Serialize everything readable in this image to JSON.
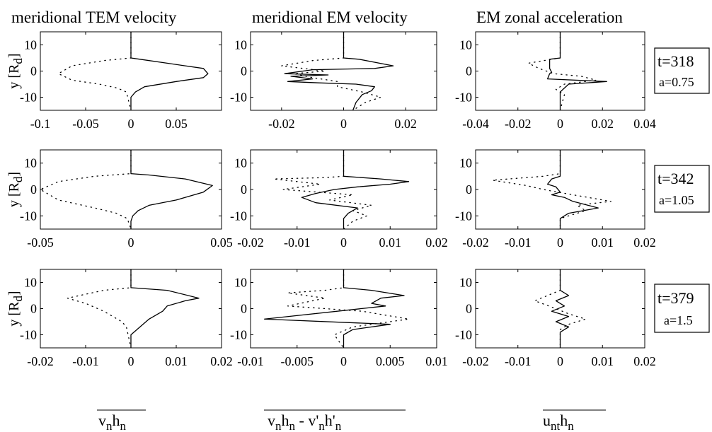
{
  "column_titles": [
    "meridional TEM velocity",
    "meridional EM velocity",
    "EM zonal acceleration"
  ],
  "ylabel": {
    "main": "y [R",
    "sub": "d",
    "close": "]"
  },
  "bottom_labels": [
    {
      "name": "vh-label",
      "text": "v",
      "subs": [
        "n"
      ],
      "mid": "h",
      "subs2": [
        "n"
      ]
    },
    {
      "name": "flux-label"
    },
    {
      "name": "uh-label"
    }
  ],
  "bottom_texts": {
    "l0": {
      "t1": "v",
      "s1": "n",
      "t2": "h",
      "s2": "n"
    },
    "l1": {
      "t1": "v",
      "s1": "n",
      "t2": "h",
      "s2": "n",
      "t3": " - v'",
      "s3": "n",
      "t4": "h'",
      "s4": "n"
    },
    "l2": {
      "t1": "u",
      "s1": "nt",
      "t2": "h",
      "s2": "n"
    }
  },
  "row_boxes": [
    {
      "t": "t=318",
      "a": "a=0.75"
    },
    {
      "t": "t=342",
      "a": "a=1.05"
    },
    {
      "t": "t=379",
      "a": "a=1.5"
    }
  ],
  "chart_data": [
    {
      "type": "line",
      "row": 0,
      "col": 0,
      "xlim": [
        -0.1,
        0.1
      ],
      "ylim": [
        -15,
        15
      ],
      "xticks": [
        "-0.1",
        "-0.05",
        "0",
        "0.05"
      ],
      "xtick_values": [
        -0.1,
        -0.05,
        0,
        0.05
      ],
      "yticks": [
        "10",
        "0",
        "-10"
      ],
      "ytick_values": [
        10,
        0,
        -10
      ],
      "series": [
        {
          "style": "solid",
          "x": [
            0,
            0,
            0.01,
            0.04,
            0.08,
            0.085,
            0.08,
            0.05,
            0.015,
            0.005,
            0,
            0
          ],
          "y": [
            15,
            5,
            4.5,
            3,
            1,
            -1,
            -2.5,
            -4,
            -6,
            -8,
            -10,
            -15
          ]
        },
        {
          "style": "dotted",
          "x": [
            0,
            0,
            -0.03,
            -0.065,
            -0.08,
            -0.065,
            -0.035,
            -0.015,
            -0.005,
            0
          ],
          "y": [
            15,
            5,
            4,
            2,
            -1,
            -3.5,
            -5,
            -6.5,
            -8,
            -15
          ]
        }
      ]
    },
    {
      "type": "line",
      "row": 0,
      "col": 1,
      "xlim": [
        -0.03,
        0.03
      ],
      "ylim": [
        -15,
        15
      ],
      "xticks": [
        "-0.02",
        "0",
        "0.02"
      ],
      "xtick_values": [
        -0.02,
        0,
        0.02
      ],
      "yticks": [
        "10",
        "0",
        "-10"
      ],
      "ytick_values": [
        10,
        0,
        -10
      ],
      "series": [
        {
          "style": "solid",
          "x": [
            0,
            0,
            0.005,
            0.016,
            0.01,
            -0.01,
            -0.019,
            -0.005,
            -0.017,
            -0.01,
            -0.018,
            -0.008,
            0.004,
            0.01,
            0.009,
            0.006,
            0.004,
            0.003
          ],
          "y": [
            15,
            5,
            4.5,
            2,
            1,
            0.5,
            -1,
            -1.5,
            -2,
            -3,
            -4,
            -4.5,
            -5,
            -6,
            -7.5,
            -9,
            -12,
            -15
          ]
        },
        {
          "style": "dotted",
          "x": [
            0,
            0,
            -0.01,
            -0.02,
            -0.013,
            -0.006,
            -0.016,
            -0.01,
            -0.002,
            -0.002,
            0.006,
            0.012,
            0.007,
            0.003
          ],
          "y": [
            15,
            5,
            4,
            2,
            1,
            0,
            -1,
            -2.5,
            -4,
            -6,
            -8,
            -10,
            -12,
            -15
          ]
        }
      ]
    },
    {
      "type": "line",
      "row": 0,
      "col": 2,
      "xlim": [
        -0.04,
        0.04
      ],
      "ylim": [
        -15,
        15
      ],
      "xticks": [
        "-0.04",
        "-0.02",
        "0",
        "0.02",
        "0.04"
      ],
      "xtick_values": [
        -0.04,
        -0.02,
        0,
        0.02,
        0.04
      ],
      "yticks": [
        "10",
        "0",
        "-10"
      ],
      "ytick_values": [
        10,
        0,
        -10
      ],
      "series": [
        {
          "style": "solid",
          "x": [
            0,
            0,
            -0.005,
            -0.005,
            -0.004,
            -0.005,
            -0.006,
            0.022,
            0.004,
            0.002,
            0,
            0
          ],
          "y": [
            15,
            5,
            4.5,
            1,
            -0.5,
            -1,
            -3,
            -4,
            -5,
            -6.5,
            -8,
            -15
          ]
        },
        {
          "style": "dotted",
          "x": [
            0,
            0,
            -0.004,
            -0.015,
            -0.01,
            -0.003,
            0.01,
            0.017,
            0.002,
            -0.002,
            0.002,
            0
          ],
          "y": [
            15,
            5,
            4.5,
            3,
            1,
            -1,
            -2,
            -3.5,
            -5,
            -7,
            -9,
            -15
          ]
        }
      ]
    },
    {
      "type": "line",
      "row": 1,
      "col": 0,
      "xlim": [
        -0.05,
        0.05
      ],
      "ylim": [
        -15,
        15
      ],
      "xticks": [
        "-0.05",
        "0",
        "0.05"
      ],
      "xtick_values": [
        -0.05,
        0,
        0.05
      ],
      "yticks": [
        "10",
        "0",
        "-10"
      ],
      "ytick_values": [
        10,
        0,
        -10
      ],
      "series": [
        {
          "style": "solid",
          "x": [
            0,
            0,
            0.01,
            0.03,
            0.045,
            0.04,
            0.025,
            0.01,
            0.004,
            0.001,
            0,
            0
          ],
          "y": [
            15,
            6,
            5.5,
            4,
            1.5,
            -1,
            -4,
            -6,
            -8,
            -10,
            -12,
            -15
          ]
        },
        {
          "style": "dotted",
          "x": [
            0,
            0,
            -0.02,
            -0.04,
            -0.05,
            -0.04,
            -0.02,
            -0.008,
            -0.002,
            0
          ],
          "y": [
            15,
            6,
            5,
            3,
            0,
            -4,
            -7,
            -9,
            -11,
            -15
          ]
        }
      ]
    },
    {
      "type": "line",
      "row": 1,
      "col": 1,
      "xlim": [
        -0.02,
        0.02
      ],
      "ylim": [
        -15,
        15
      ],
      "xticks": [
        "-0.02",
        "-0.01",
        "0",
        "0.01",
        "0.02"
      ],
      "xtick_values": [
        -0.02,
        -0.01,
        0,
        0.01,
        0.02
      ],
      "yticks": [
        "10",
        "0",
        "-10"
      ],
      "ytick_values": [
        10,
        0,
        -10
      ],
      "series": [
        {
          "style": "solid",
          "x": [
            0,
            0,
            0.008,
            0.014,
            0.01,
            0.003,
            -0.002,
            -0.006,
            -0.009,
            -0.006,
            0.003,
            0.001,
            0,
            0
          ],
          "y": [
            15,
            5,
            4,
            3,
            2,
            1,
            0,
            -1.5,
            -3,
            -5,
            -7,
            -9,
            -11,
            -15
          ]
        },
        {
          "style": "dotted",
          "x": [
            0,
            0,
            -0.004,
            -0.015,
            -0.005,
            -0.013,
            0.002,
            -0.003,
            0.006,
            0.002,
            0.005,
            0.002,
            0
          ],
          "y": [
            15,
            5,
            4.5,
            4,
            2,
            0,
            -2,
            -4,
            -6,
            -8,
            -10,
            -12,
            -15
          ]
        }
      ]
    },
    {
      "type": "line",
      "row": 1,
      "col": 2,
      "xlim": [
        -0.02,
        0.02
      ],
      "ylim": [
        -15,
        15
      ],
      "xticks": [
        "-0.02",
        "-0.01",
        "0",
        "0.01",
        "0.02"
      ],
      "xtick_values": [
        -0.02,
        -0.01,
        0,
        0.01,
        0.02
      ],
      "yticks": [
        "10",
        "0",
        "-10"
      ],
      "ytick_values": [
        10,
        0,
        -10
      ],
      "series": [
        {
          "style": "solid",
          "x": [
            0,
            0,
            -0.002,
            -0.003,
            -0.001,
            0,
            -0.002,
            0.001,
            0.003,
            0.009,
            0.002,
            0,
            0
          ],
          "y": [
            15,
            5,
            4,
            2,
            1,
            -1,
            -2,
            -3,
            -4.5,
            -7,
            -9,
            -11,
            -15
          ]
        },
        {
          "style": "dotted",
          "x": [
            0,
            0,
            -0.004,
            -0.016,
            -0.008,
            -0.004,
            0.003,
            0.012,
            0.004,
            0.006,
            0.002,
            0,
            0
          ],
          "y": [
            15,
            6,
            5,
            3.5,
            1.5,
            0,
            -2,
            -4.5,
            -6,
            -8,
            -10,
            -11,
            -15
          ]
        }
      ]
    },
    {
      "type": "line",
      "row": 2,
      "col": 0,
      "xlim": [
        -0.02,
        0.02
      ],
      "ylim": [
        -15,
        15
      ],
      "xticks": [
        "-0.02",
        "-0.01",
        "0",
        "0.01",
        "0.02"
      ],
      "xtick_values": [
        -0.02,
        -0.01,
        0,
        0.01,
        0.02
      ],
      "yticks": [
        "10",
        "0",
        "-10"
      ],
      "ytick_values": [
        10,
        0,
        -10
      ],
      "series": [
        {
          "style": "solid",
          "x": [
            0,
            0,
            0.008,
            0.015,
            0.012,
            0.008,
            0.007,
            0.004,
            0.002,
            0,
            0
          ],
          "y": [
            15,
            8,
            7,
            4,
            3,
            1,
            -1,
            -4,
            -7,
            -10,
            -15
          ]
        },
        {
          "style": "dotted",
          "x": [
            0,
            0,
            -0.006,
            -0.014,
            -0.01,
            -0.006,
            -0.004,
            -0.002,
            -0.001,
            0
          ],
          "y": [
            15,
            8,
            7,
            4,
            2,
            -1,
            -3,
            -5,
            -7,
            -15
          ]
        }
      ]
    },
    {
      "type": "line",
      "row": 2,
      "col": 1,
      "xlim": [
        -0.01,
        0.01
      ],
      "ylim": [
        -15,
        15
      ],
      "xticks": [
        "-0.01",
        "-0.005",
        "0",
        "0.005",
        "0.01"
      ],
      "xtick_values": [
        -0.01,
        -0.005,
        0,
        0.005,
        0.01
      ],
      "yticks": [
        "10",
        "0",
        "-10"
      ],
      "ytick_values": [
        10,
        0,
        -10
      ],
      "series": [
        {
          "style": "solid",
          "x": [
            0,
            0,
            0.003,
            0.0065,
            0.004,
            0.003,
            0.0045,
            -0.0085,
            0.005,
            0.001,
            0,
            0
          ],
          "y": [
            15,
            8,
            7,
            5,
            4,
            2,
            1,
            -4,
            -6,
            -8,
            -10,
            -15
          ]
        },
        {
          "style": "dotted",
          "x": [
            0,
            0,
            -0.002,
            -0.006,
            -0.002,
            -0.006,
            0.002,
            0.007,
            0.001,
            -0.001,
            0
          ],
          "y": [
            15,
            8,
            7,
            6,
            4,
            1,
            -1,
            -4,
            -7,
            -10,
            -15
          ]
        }
      ]
    },
    {
      "type": "line",
      "row": 2,
      "col": 2,
      "xlim": [
        -0.02,
        0.02
      ],
      "ylim": [
        -15,
        15
      ],
      "xticks": [
        "-0.02",
        "-0.01",
        "0",
        "0.01",
        "0.02"
      ],
      "xtick_values": [
        -0.02,
        -0.01,
        0,
        0.01,
        0.02
      ],
      "yticks": [
        "10",
        "0",
        "-10"
      ],
      "ytick_values": [
        10,
        0,
        -10
      ],
      "series": [
        {
          "style": "solid",
          "x": [
            0,
            0,
            0.002,
            -0.001,
            0.001,
            -0.002,
            0.002,
            -0.001,
            0.002,
            0,
            0
          ],
          "y": [
            15,
            7,
            5,
            3,
            1,
            -1,
            -3,
            -5,
            -7,
            -9,
            -15
          ]
        },
        {
          "style": "dotted",
          "x": [
            0,
            0,
            -0.003,
            -0.006,
            -0.001,
            0.002,
            0.006,
            0.002,
            0,
            0
          ],
          "y": [
            15,
            7,
            5,
            3,
            0,
            -2,
            -4,
            -6,
            -8,
            -15
          ]
        }
      ]
    }
  ]
}
